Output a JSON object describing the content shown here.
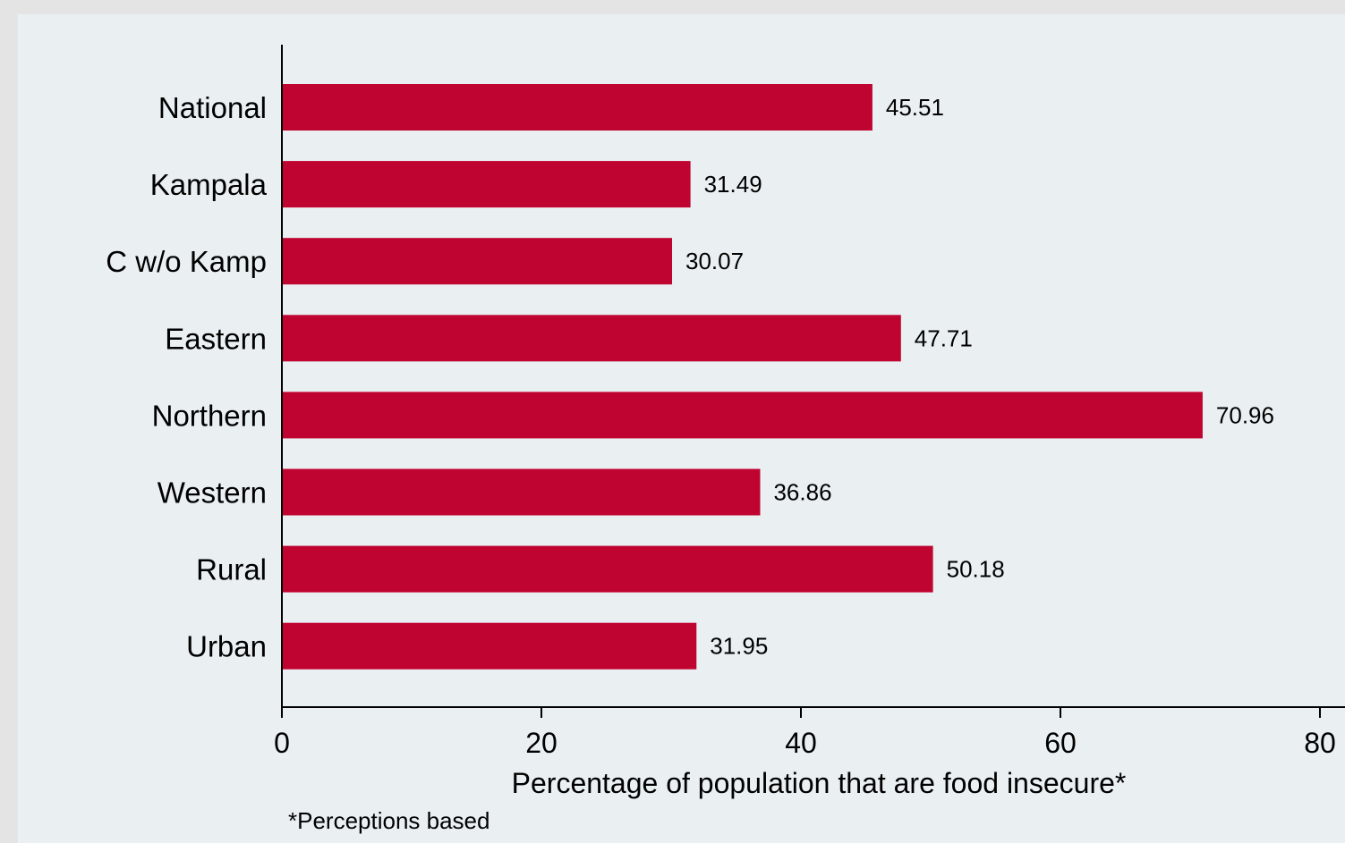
{
  "chart_data": {
    "type": "bar",
    "orientation": "horizontal",
    "categories": [
      "National",
      "Kampala",
      "C w/o Kamp",
      "Eastern",
      "Northern",
      "Western",
      "Rural",
      "Urban"
    ],
    "values": [
      45.51,
      31.49,
      30.07,
      47.71,
      70.96,
      36.86,
      50.18,
      31.95
    ],
    "value_labels": [
      "45.51",
      "31.49",
      "30.07",
      "47.71",
      "70.96",
      "36.86",
      "50.18",
      "31.95"
    ],
    "xlabel": "Percentage of population that are food insecure*",
    "note": "*Perceptions based",
    "xlim": [
      0,
      80
    ],
    "xticks": [
      0,
      20,
      40,
      60,
      80
    ],
    "grid": false,
    "colors": {
      "bar": "#c00432",
      "background": "#eaf0f2",
      "axis": "#000000"
    }
  }
}
